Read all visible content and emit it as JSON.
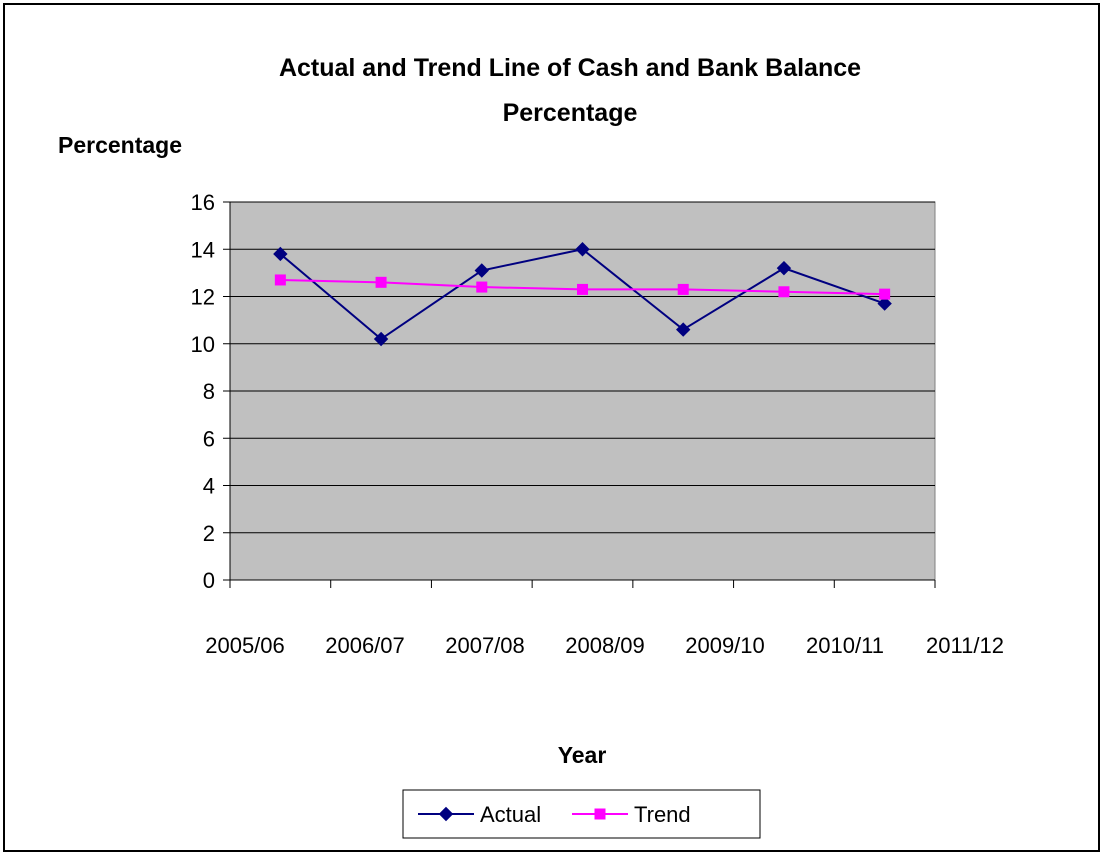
{
  "chart_data": {
    "type": "line",
    "title_line1": "Actual and Trend Line of Cash and Bank Balance",
    "title_line2": "Percentage",
    "ylabel": "Percentage",
    "xlabel": "Year",
    "categories": [
      "2005/06",
      "2006/07",
      "2007/08",
      "2008/09",
      "2009/10",
      "2010/11",
      "2011/12"
    ],
    "ylim": [
      0,
      16
    ],
    "yticks": [
      "0",
      "2",
      "4",
      "6",
      "8",
      "10",
      "12",
      "14",
      "16"
    ],
    "grid": true,
    "legend_position": "bottom",
    "plot_background": "#c0c0c0",
    "series": [
      {
        "name": "Actual",
        "color": "#000080",
        "marker": "diamond",
        "values": [
          13.8,
          10.2,
          13.1,
          14.0,
          10.6,
          13.2,
          11.7
        ]
      },
      {
        "name": "Trend",
        "color": "#ff00ff",
        "marker": "square",
        "values": [
          12.7,
          12.6,
          12.4,
          12.3,
          12.3,
          12.2,
          12.1
        ]
      }
    ]
  }
}
